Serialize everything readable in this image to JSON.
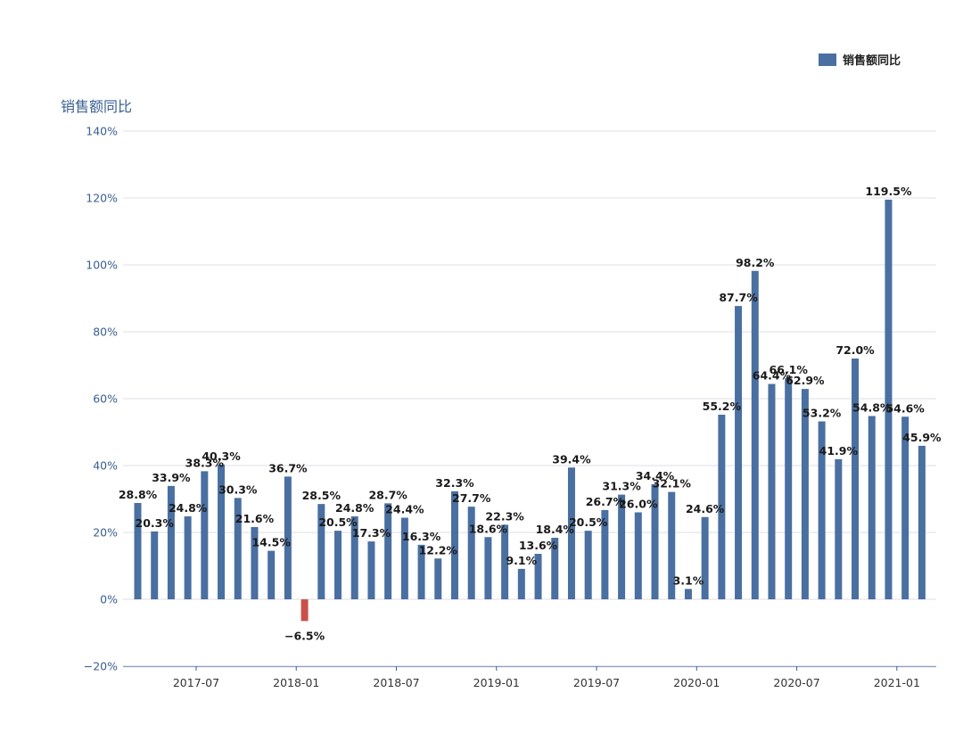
{
  "colors": {
    "positive": "#4a6fa1",
    "negative": "#c9514a",
    "axis_text": "#3a5f92",
    "grid": "#dcdfe6",
    "label": "#1a1a1a"
  },
  "chart_data": {
    "type": "bar",
    "title": "",
    "ylabel": "销售额同比",
    "xlabel": "",
    "legend": {
      "label": "销售额同比",
      "position": "top-right"
    },
    "ylim": [
      -20,
      140
    ],
    "yticks": [
      -20,
      0,
      20,
      40,
      60,
      80,
      100,
      120,
      140
    ],
    "ytick_labels": [
      "−20%",
      "0%",
      "20%",
      "40%",
      "60%",
      "80%",
      "100%",
      "120%",
      "140%"
    ],
    "xtick_labels": [
      {
        "index": 3.5,
        "label": "2017-07"
      },
      {
        "index": 9.5,
        "label": "2018-01"
      },
      {
        "index": 15.5,
        "label": "2018-07"
      },
      {
        "index": 21.5,
        "label": "2019-01"
      },
      {
        "index": 27.5,
        "label": "2019-07"
      },
      {
        "index": 33.5,
        "label": "2020-01"
      },
      {
        "index": 39.5,
        "label": "2020-07"
      },
      {
        "index": 45.5,
        "label": "2021-01"
      }
    ],
    "categories": [
      "2017-04",
      "2017-05",
      "2017-06",
      "2017-07",
      "2017-08",
      "2017-09",
      "2017-10",
      "2017-11",
      "2017-12",
      "2018-01",
      "2018-02",
      "2018-03",
      "2018-04",
      "2018-05",
      "2018-06",
      "2018-07",
      "2018-08",
      "2018-09",
      "2018-10",
      "2018-11",
      "2018-12",
      "2019-01",
      "2019-02",
      "2019-03",
      "2019-04",
      "2019-05",
      "2019-06",
      "2019-07",
      "2019-08",
      "2019-09",
      "2019-10",
      "2019-11",
      "2019-12",
      "2020-01",
      "2020-02",
      "2020-03",
      "2020-04",
      "2020-05",
      "2020-06",
      "2020-07",
      "2020-08",
      "2020-09",
      "2020-10",
      "2020-11",
      "2020-12",
      "2021-01",
      "2021-02",
      "2021-03"
    ],
    "values": [
      28.8,
      20.3,
      33.9,
      24.8,
      38.3,
      40.3,
      30.3,
      21.6,
      14.5,
      36.7,
      -6.5,
      28.5,
      20.5,
      24.8,
      17.3,
      28.7,
      24.4,
      16.3,
      12.2,
      32.3,
      27.7,
      18.6,
      22.3,
      9.1,
      13.6,
      18.4,
      39.4,
      20.5,
      26.7,
      31.3,
      26.0,
      34.4,
      32.1,
      3.1,
      24.6,
      55.2,
      87.7,
      98.2,
      64.4,
      66.1,
      62.9,
      53.2,
      41.9,
      72.0,
      54.8,
      119.5,
      54.6,
      45.9
    ],
    "data_labels": [
      "28.8%",
      "20.3%",
      "33.9%",
      "24.8%",
      "38.3%",
      "40.3%",
      "30.3%",
      "21.6%",
      "14.5%",
      "36.7%",
      "−6.5%",
      "28.5%",
      "20.5%",
      "24.8%",
      "17.3%",
      "28.7%",
      "24.4%",
      "16.3%",
      "12.2%",
      "32.3%",
      "27.7%",
      "18.6%",
      "22.3%",
      "9.1%",
      "13.6%",
      "18.4%",
      "39.4%",
      "20.5%",
      "26.7%",
      "31.3%",
      "26.0%",
      "34.4%",
      "32.1%",
      "3.1%",
      "24.6%",
      "55.2%",
      "87.7%",
      "98.2%",
      "64.4%",
      "66.1%",
      "62.9%",
      "53.2%",
      "41.9%",
      "72.0%",
      "54.8%",
      "119.5%",
      "54.6%",
      "45.9%"
    ]
  }
}
